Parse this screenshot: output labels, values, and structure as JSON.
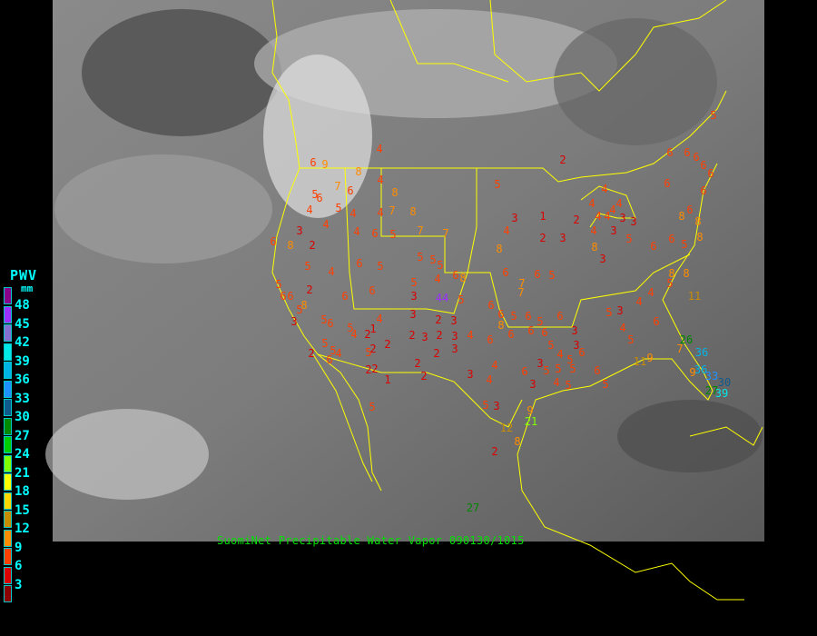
{
  "caption": "SuomiNet Precipitable Water Vapor 090130/1015",
  "legend": {
    "title": "PWV",
    "unit": "mm",
    "labels": [
      "48",
      "45",
      "42",
      "39",
      "36",
      "33",
      "30",
      "27",
      "24",
      "21",
      "18",
      "15",
      "12",
      "9",
      "6",
      "3"
    ],
    "colors": [
      "#8b008b",
      "#9b30ff",
      "#8470d0",
      "#00e8e8",
      "#00b4e6",
      "#1e90ff",
      "#105a8c",
      "#008800",
      "#00cc00",
      "#80ff00",
      "#ffff00",
      "#ffd700",
      "#c88c00",
      "#ff8c00",
      "#ff4000",
      "#dc0000",
      "#8b0000"
    ]
  },
  "map": {
    "background": "#000000",
    "border_color": "#ffff00",
    "stations": [
      4,
      9,
      6,
      8,
      4,
      8,
      6,
      7,
      5,
      6,
      4,
      5,
      4,
      4,
      7,
      8,
      3,
      4,
      4,
      6,
      5,
      7,
      7,
      6,
      2,
      8,
      5,
      4,
      6,
      5,
      5,
      5,
      5,
      6,
      5,
      4,
      8,
      5,
      2,
      6,
      6,
      3,
      44,
      5,
      6,
      5,
      3,
      1,
      4,
      2,
      2,
      3,
      2,
      8,
      6,
      6,
      5,
      7,
      7,
      4,
      8,
      3,
      3,
      3,
      3,
      5,
      4,
      4,
      4,
      4,
      4,
      4,
      5,
      6,
      6,
      6,
      6,
      6,
      6,
      6,
      8,
      6,
      8,
      8,
      6,
      5,
      6,
      8,
      8,
      11,
      5,
      4,
      4,
      3,
      5,
      4,
      5,
      6,
      6,
      6,
      5,
      6,
      5,
      6,
      8,
      6,
      6,
      6,
      5,
      3,
      3,
      6,
      4,
      5,
      3,
      6,
      5,
      5,
      5,
      4,
      3,
      5,
      6,
      5,
      6,
      4,
      3,
      2,
      3,
      4,
      5,
      4,
      2,
      1,
      2,
      2,
      3,
      2,
      3,
      3,
      2,
      2,
      4,
      3,
      4,
      2,
      1,
      2,
      2,
      2,
      5,
      5,
      6,
      5,
      8,
      6,
      3,
      5,
      5,
      4,
      2,
      6,
      5,
      5,
      3,
      9,
      12,
      21,
      2,
      8,
      27,
      26,
      7,
      36,
      36,
      33,
      30,
      27,
      39,
      9,
      9,
      11
    ]
  }
}
